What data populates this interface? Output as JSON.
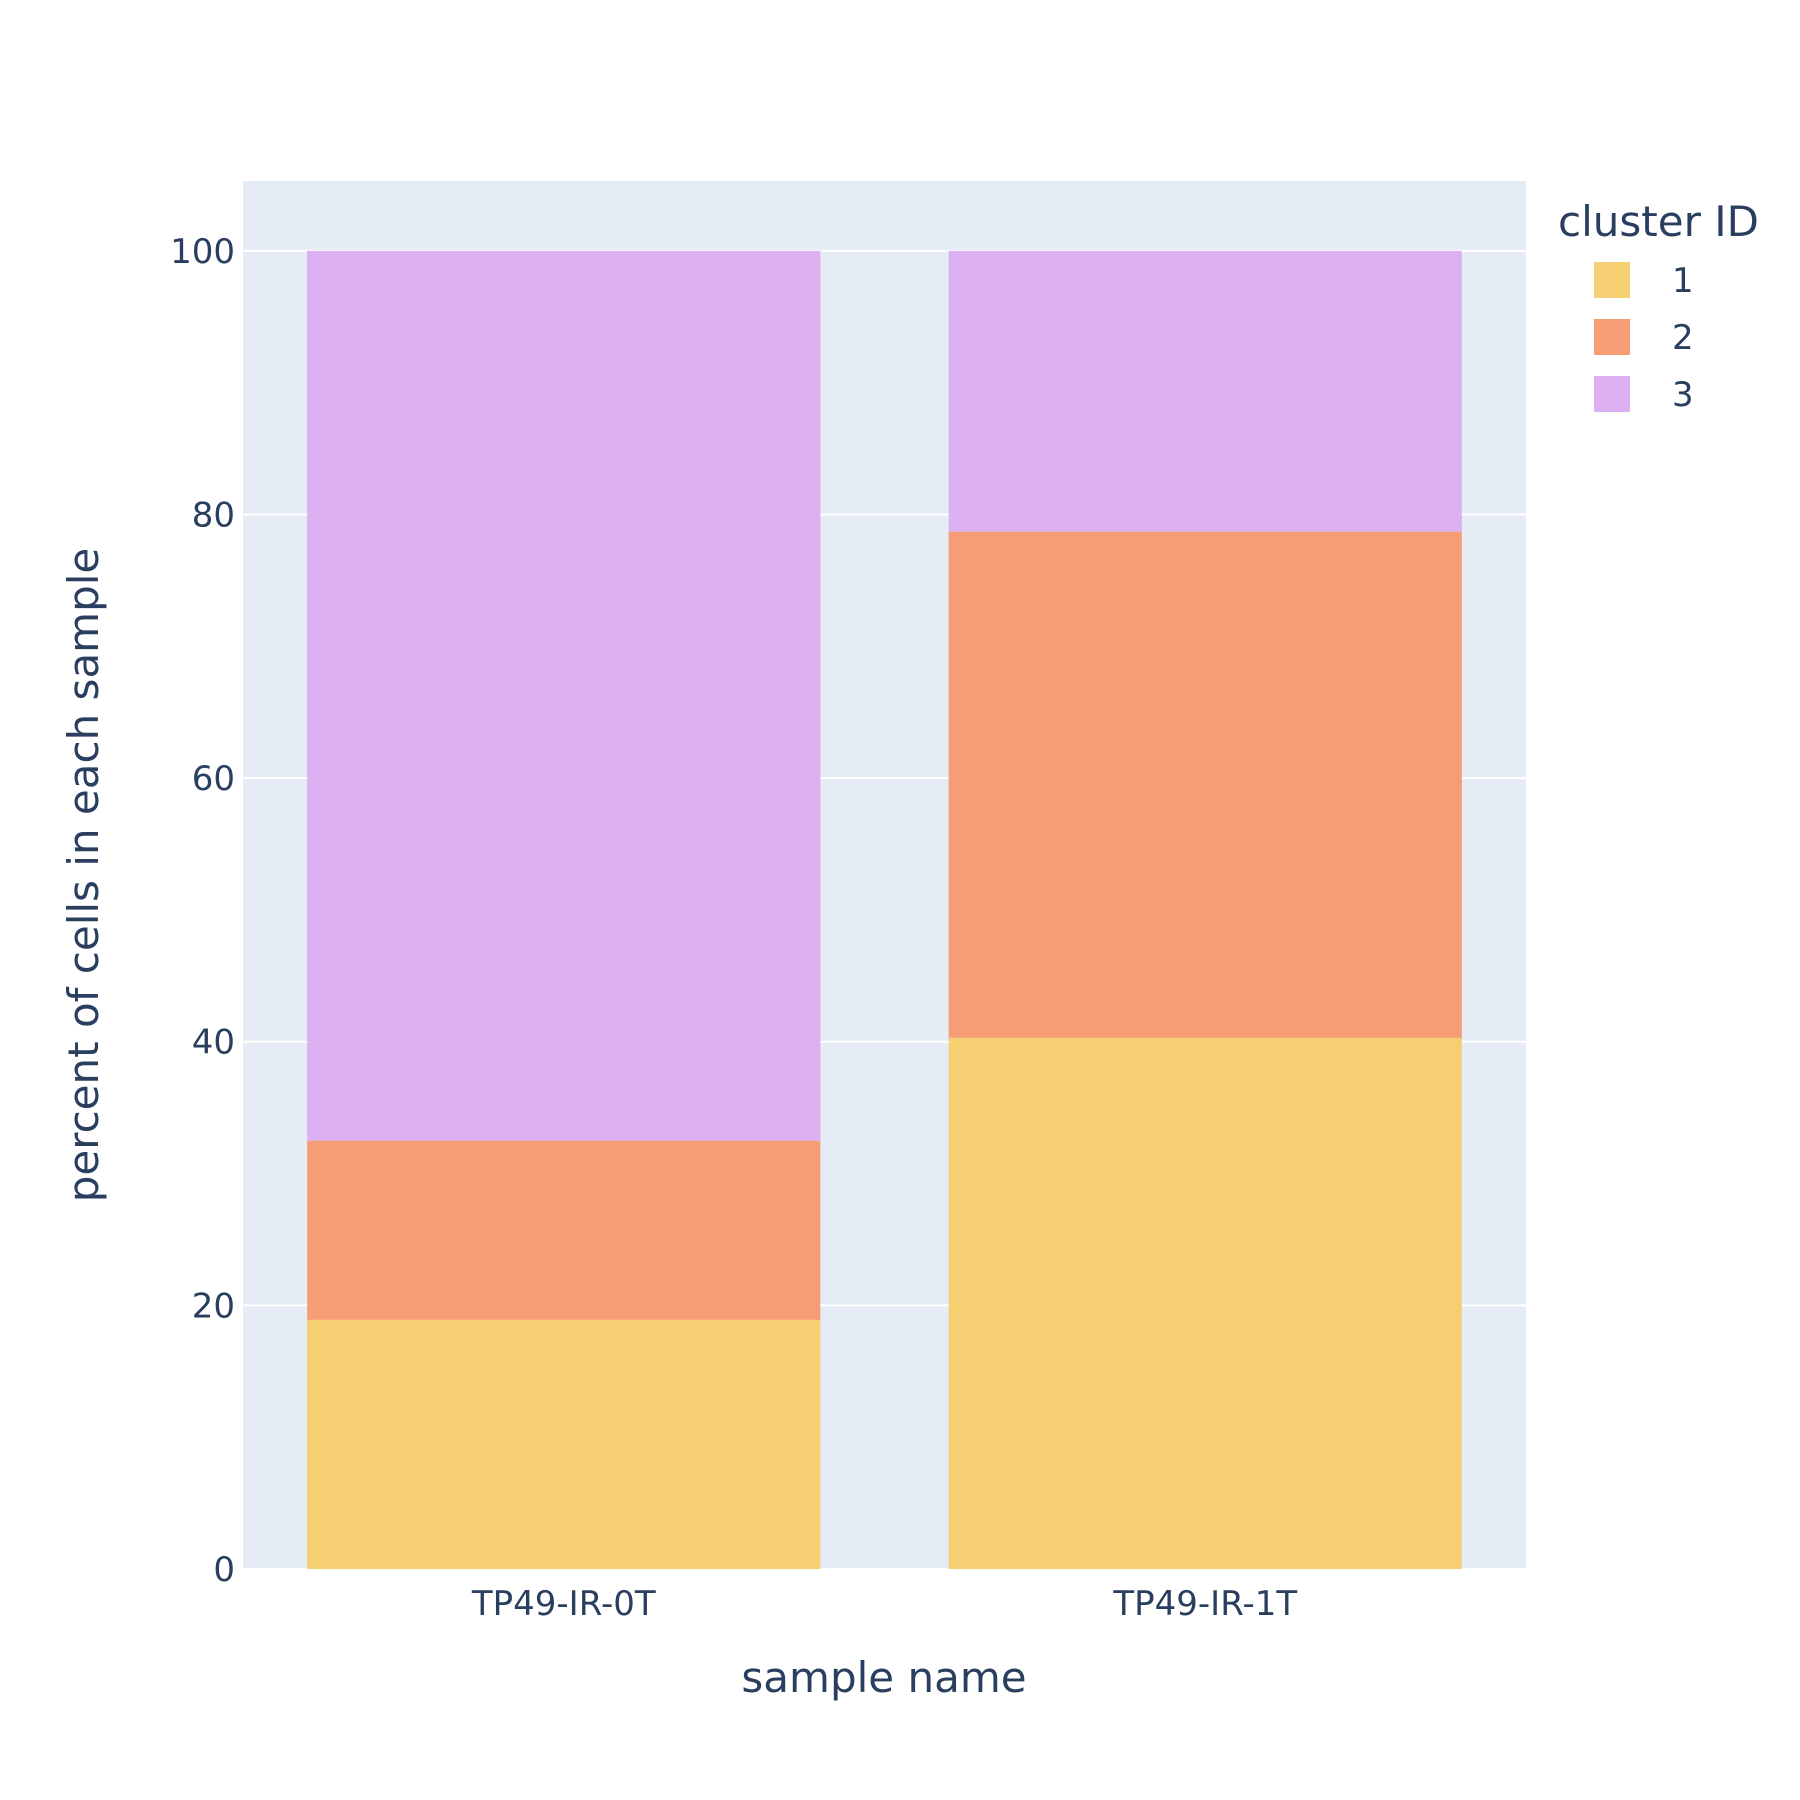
{
  "chart_data": {
    "type": "bar",
    "barmode": "stack",
    "categories": [
      "TP49-IR-0T",
      "TP49-IR-1T"
    ],
    "series": [
      {
        "name": "1",
        "values": [
          18.9,
          40.3
        ],
        "color": "#f5cf72"
      },
      {
        "name": "2",
        "values": [
          13.6,
          38.4
        ],
        "color": "#f79d75"
      },
      {
        "name": "3",
        "values": [
          67.5,
          21.3
        ],
        "color": "#ddb0f1"
      }
    ],
    "xlabel": "sample name",
    "ylabel": "percent of cells in each sample",
    "ylim": [
      0,
      105.3
    ],
    "yticks": [
      0,
      20,
      40,
      60,
      80,
      100
    ],
    "ytick_labels": [
      "0",
      "20",
      "40",
      "60",
      "80",
      "100"
    ],
    "grid": true,
    "legend": {
      "title": "cluster ID",
      "position": "top-right"
    },
    "colors": {
      "plot_bg": "#e5ecf6",
      "grid": "#ffffff",
      "text": "#2a3f5f"
    }
  }
}
